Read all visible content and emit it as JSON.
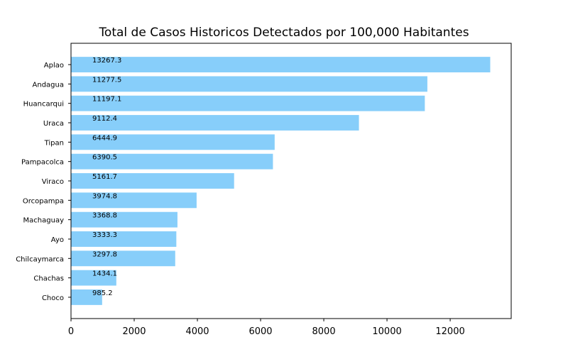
{
  "chart_data": {
    "type": "bar",
    "orientation": "horizontal",
    "title": "Total de Casos Historicos Detectados por 100,000 Habitantes",
    "xlabel": "",
    "ylabel": "",
    "categories": [
      "Aplao",
      "Andagua",
      "Huancarqui",
      "Uraca",
      "Tipan",
      "Pampacolca",
      "Viraco",
      "Orcopampa",
      "Machaguay",
      "Ayo",
      "Chilcaymarca",
      "Chachas",
      "Choco"
    ],
    "values": [
      13267.3,
      11277.5,
      11197.1,
      9112.4,
      6444.9,
      6390.5,
      5161.7,
      3974.8,
      3368.8,
      3333.3,
      3297.8,
      1434.1,
      985.2
    ],
    "data_labels": [
      "13267.3",
      "11277.5",
      "11197.1",
      "9112.4",
      "6444.9",
      "6390.5",
      "5161.7",
      "3974.8",
      "3368.8",
      "3333.3",
      "3297.8",
      "1434.1",
      "985.2"
    ],
    "xticks": [
      0,
      2000,
      4000,
      6000,
      8000,
      10000,
      12000
    ],
    "xlim": [
      0,
      13930.7
    ],
    "bar_color": "#87CEFA",
    "grid": false,
    "legend": "none"
  }
}
